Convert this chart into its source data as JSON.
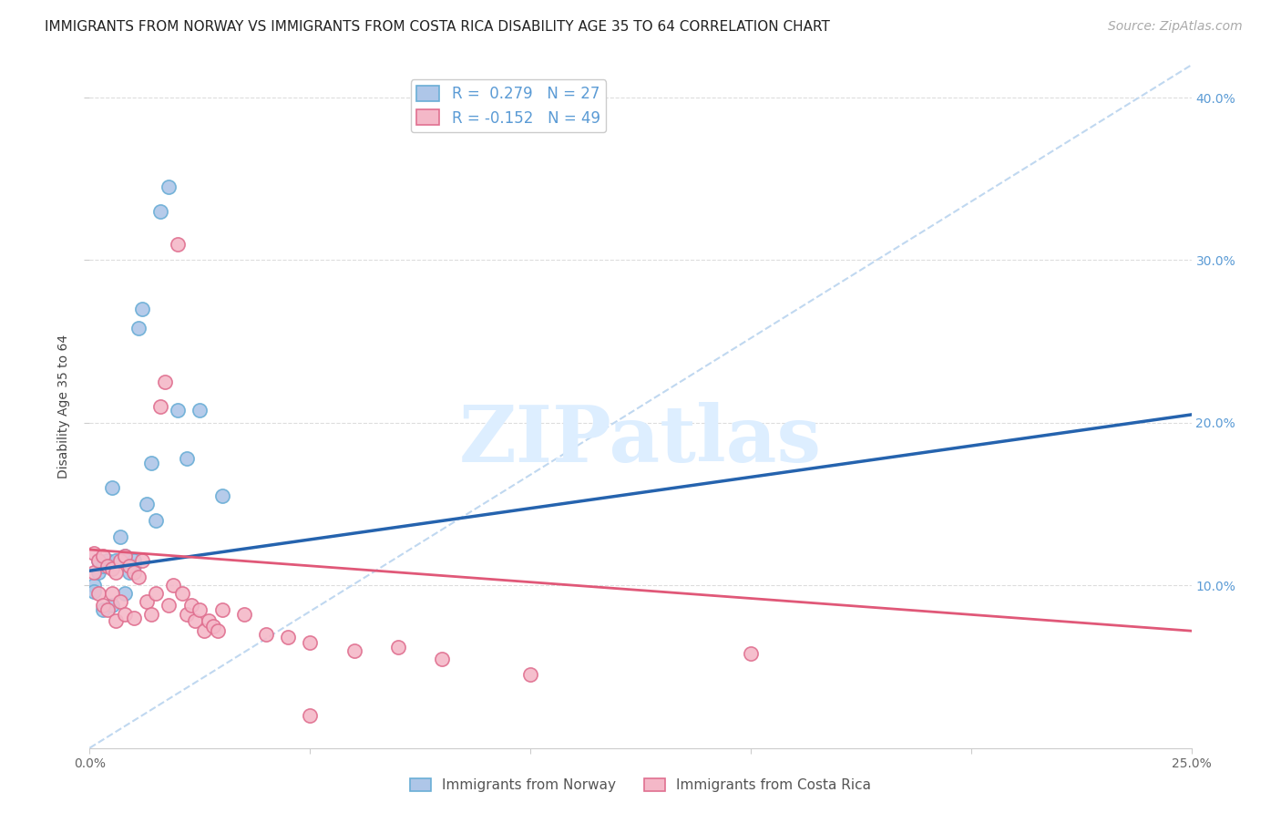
{
  "title": "IMMIGRANTS FROM NORWAY VS IMMIGRANTS FROM COSTA RICA DISABILITY AGE 35 TO 64 CORRELATION CHART",
  "source": "Source: ZipAtlas.com",
  "ylabel": "Disability Age 35 to 64",
  "xlim": [
    0.0,
    0.25
  ],
  "ylim": [
    0.0,
    0.42
  ],
  "norway_color": "#aec6e8",
  "norway_edge_color": "#6aaed6",
  "costa_rica_color": "#f4b8c8",
  "costa_rica_edge_color": "#e07090",
  "norway_line_color": "#2563ae",
  "costa_rica_line_color": "#e05878",
  "diagonal_color": "#c0d8f0",
  "watermark_text": "ZIPatlas",
  "watermark_color": "#ddeeff",
  "norway_R": 0.279,
  "norway_N": 27,
  "costa_rica_R": -0.152,
  "costa_rica_N": 49,
  "norway_line_x0": 0.0,
  "norway_line_y0": 0.109,
  "norway_line_x1": 0.25,
  "norway_line_y1": 0.205,
  "cr_line_x0": 0.0,
  "cr_line_y0": 0.122,
  "cr_line_x1": 0.25,
  "cr_line_y1": 0.072,
  "norway_scatter_x": [
    0.001,
    0.002,
    0.002,
    0.003,
    0.004,
    0.005,
    0.006,
    0.007,
    0.008,
    0.009,
    0.01,
    0.01,
    0.011,
    0.012,
    0.013,
    0.014,
    0.015,
    0.016,
    0.018,
    0.02,
    0.022,
    0.025,
    0.03,
    0.001,
    0.003,
    0.005,
    0.008
  ],
  "norway_scatter_y": [
    0.1,
    0.115,
    0.108,
    0.112,
    0.115,
    0.16,
    0.115,
    0.13,
    0.118,
    0.108,
    0.112,
    0.115,
    0.258,
    0.27,
    0.15,
    0.175,
    0.14,
    0.33,
    0.345,
    0.208,
    0.178,
    0.208,
    0.155,
    0.096,
    0.085,
    0.088,
    0.095
  ],
  "cr_scatter_x": [
    0.001,
    0.001,
    0.002,
    0.002,
    0.003,
    0.003,
    0.004,
    0.004,
    0.005,
    0.005,
    0.006,
    0.006,
    0.007,
    0.007,
    0.008,
    0.008,
    0.009,
    0.01,
    0.01,
    0.011,
    0.012,
    0.013,
    0.014,
    0.015,
    0.016,
    0.017,
    0.018,
    0.019,
    0.02,
    0.021,
    0.022,
    0.023,
    0.024,
    0.025,
    0.026,
    0.027,
    0.028,
    0.029,
    0.03,
    0.035,
    0.04,
    0.045,
    0.05,
    0.06,
    0.08,
    0.1,
    0.15,
    0.05,
    0.07
  ],
  "cr_scatter_y": [
    0.12,
    0.108,
    0.115,
    0.095,
    0.118,
    0.088,
    0.112,
    0.085,
    0.11,
    0.095,
    0.108,
    0.078,
    0.115,
    0.09,
    0.118,
    0.082,
    0.112,
    0.108,
    0.08,
    0.105,
    0.115,
    0.09,
    0.082,
    0.095,
    0.21,
    0.225,
    0.088,
    0.1,
    0.31,
    0.095,
    0.082,
    0.088,
    0.078,
    0.085,
    0.072,
    0.078,
    0.075,
    0.072,
    0.085,
    0.082,
    0.07,
    0.068,
    0.065,
    0.06,
    0.055,
    0.045,
    0.058,
    0.02,
    0.062
  ],
  "legend_norway_label": "Immigrants from Norway",
  "legend_cr_label": "Immigrants from Costa Rica",
  "title_fontsize": 11,
  "source_fontsize": 10,
  "axis_label_fontsize": 10,
  "tick_fontsize": 10,
  "legend_fontsize": 12,
  "marker_size": 120
}
